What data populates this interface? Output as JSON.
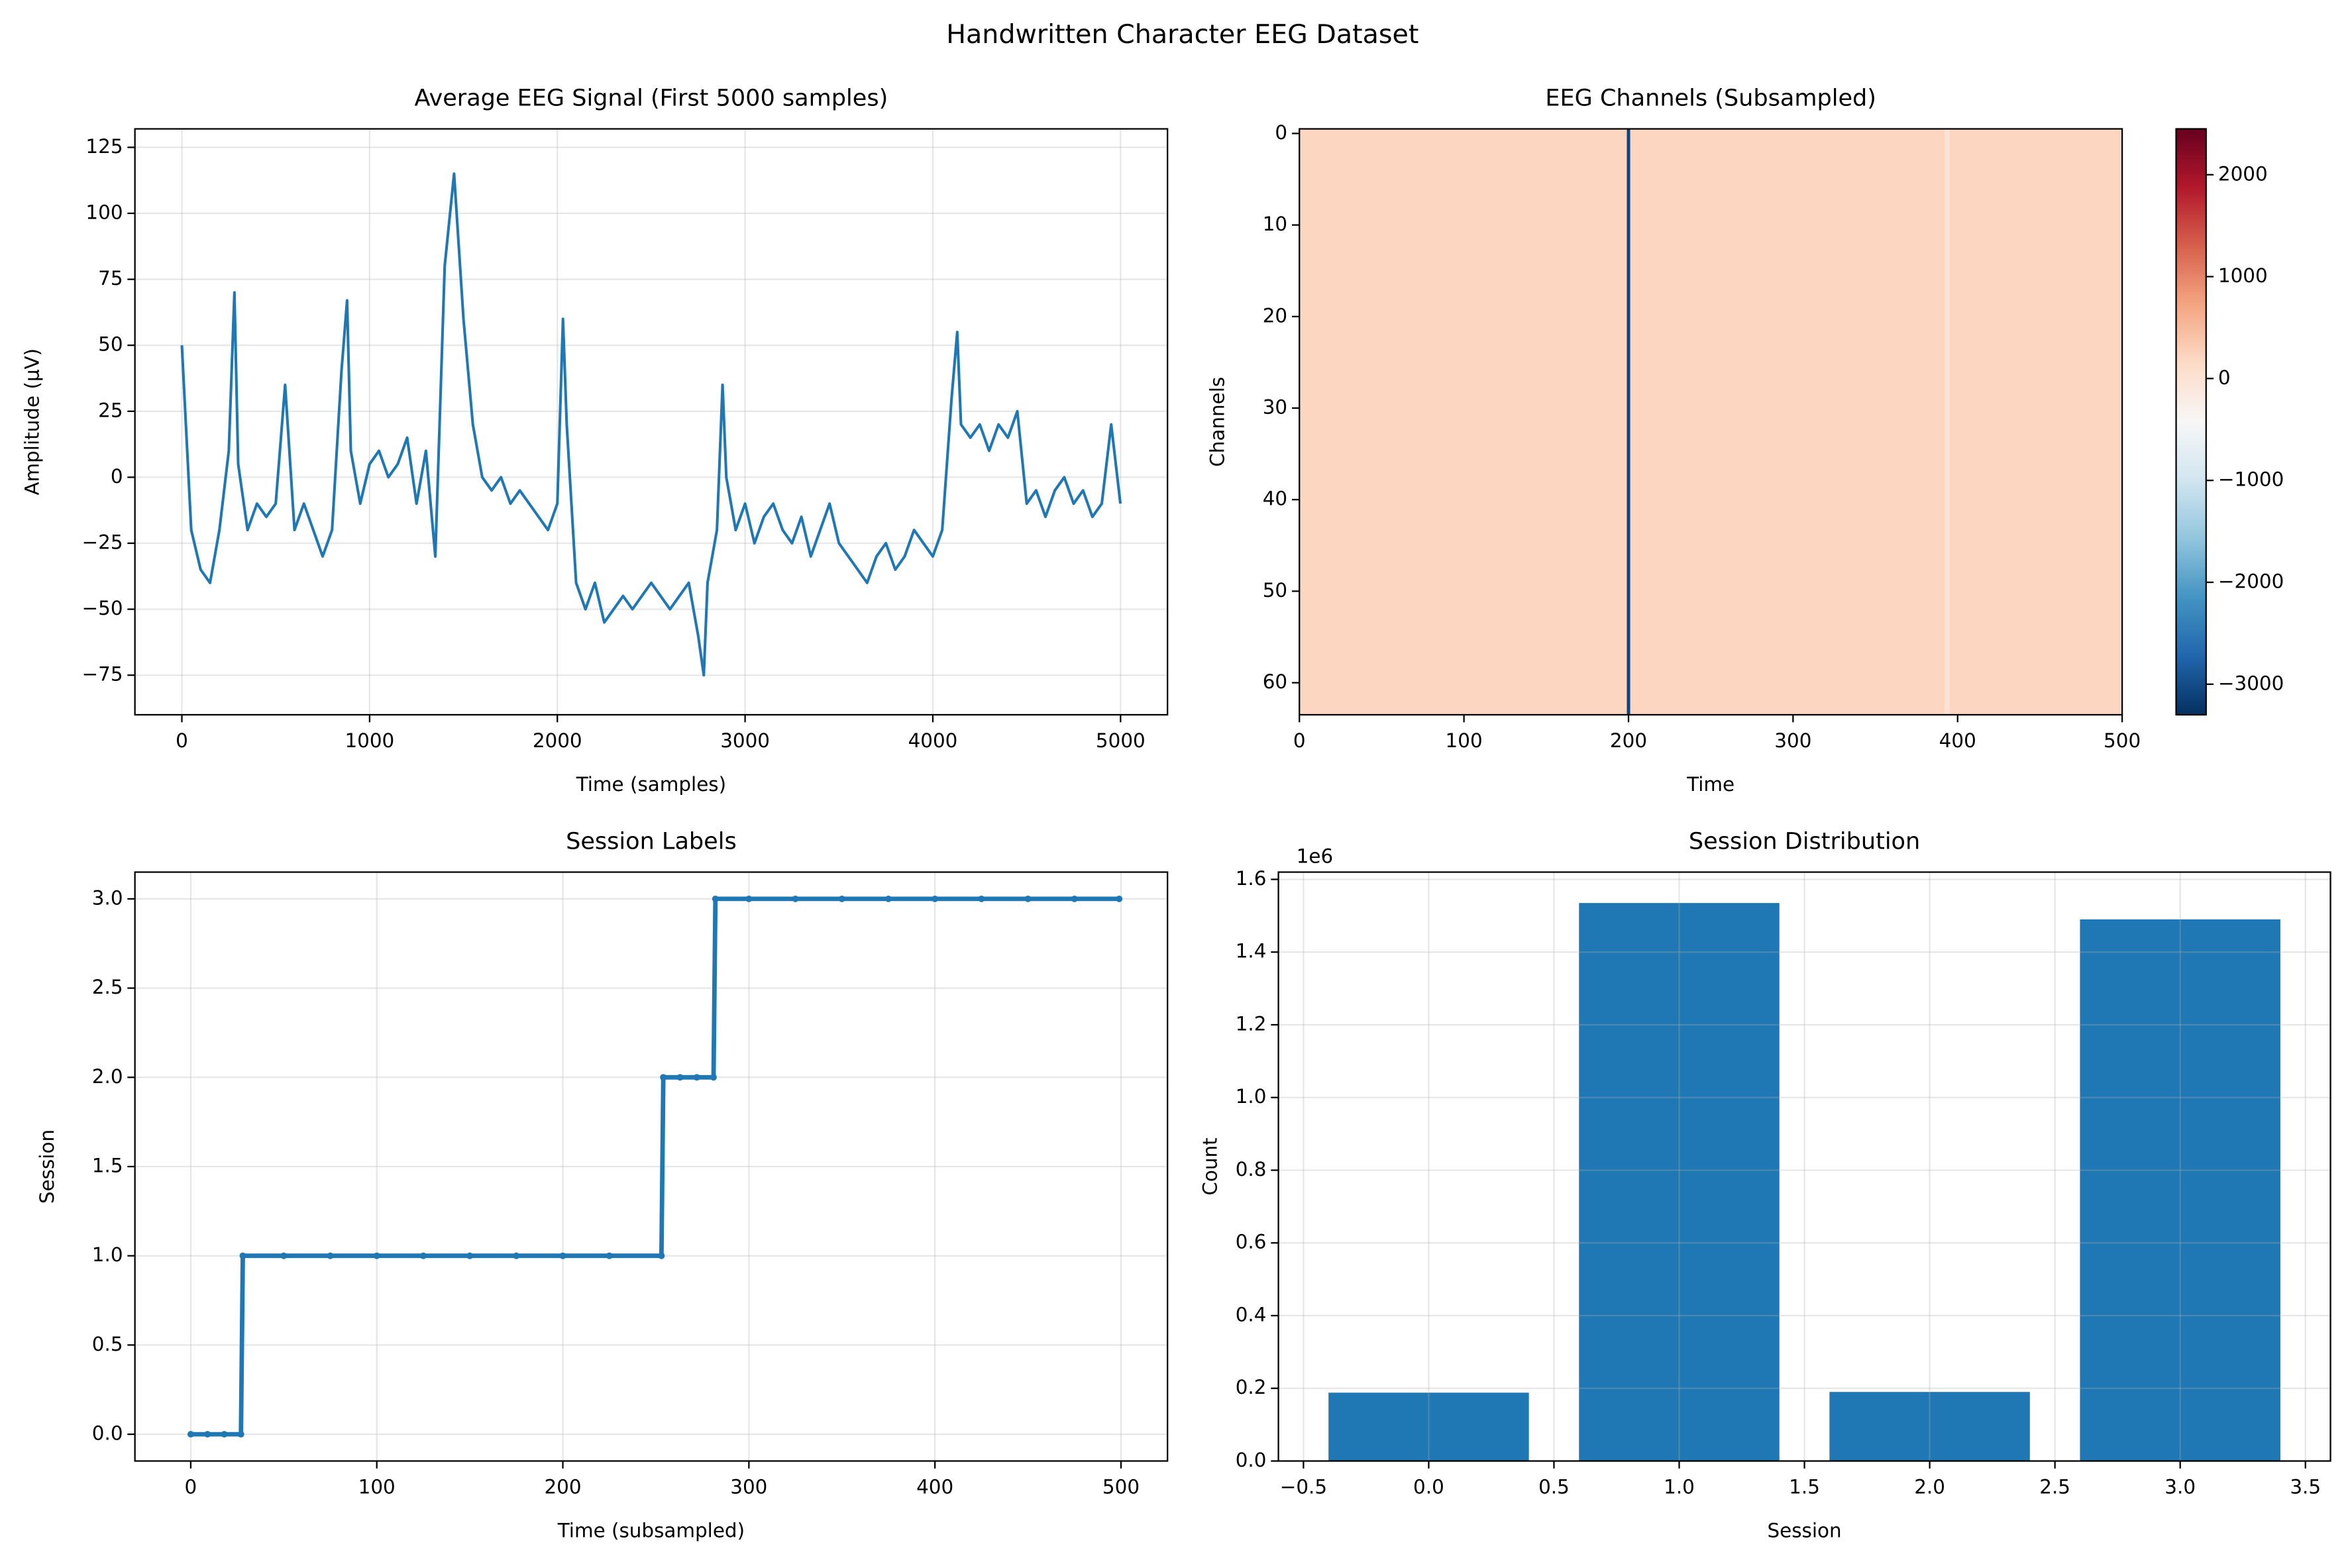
{
  "title": "Handwritten Character EEG Dataset",
  "chart_data": [
    {
      "type": "line",
      "title": "Average EEG Signal (First 5000 samples)",
      "xlabel": "Time (samples)",
      "ylabel": "Amplitude (μV)",
      "color": "#1f77b4",
      "grid": true,
      "x": [
        0,
        50,
        100,
        150,
        200,
        250,
        280,
        300,
        350,
        400,
        450,
        500,
        550,
        600,
        650,
        700,
        750,
        800,
        850,
        880,
        900,
        950,
        1000,
        1050,
        1100,
        1150,
        1200,
        1250,
        1300,
        1350,
        1400,
        1450,
        1500,
        1550,
        1600,
        1650,
        1700,
        1750,
        1800,
        1850,
        1900,
        1950,
        2000,
        2030,
        2050,
        2100,
        2150,
        2200,
        2250,
        2300,
        2350,
        2400,
        2450,
        2500,
        2550,
        2600,
        2650,
        2700,
        2750,
        2780,
        2800,
        2850,
        2880,
        2900,
        2950,
        3000,
        3050,
        3100,
        3150,
        3200,
        3250,
        3300,
        3350,
        3400,
        3450,
        3500,
        3550,
        3600,
        3650,
        3700,
        3750,
        3800,
        3850,
        3900,
        3950,
        4000,
        4050,
        4100,
        4130,
        4150,
        4200,
        4250,
        4300,
        4350,
        4400,
        4450,
        4500,
        4550,
        4600,
        4650,
        4700,
        4750,
        4800,
        4850,
        4900,
        4950,
        4999
      ],
      "values": [
        50,
        -20,
        -35,
        -40,
        -20,
        10,
        70,
        5,
        -20,
        -10,
        -15,
        -10,
        35,
        -20,
        -10,
        -20,
        -30,
        -20,
        40,
        67,
        10,
        -10,
        5,
        10,
        0,
        5,
        15,
        -10,
        10,
        -30,
        80,
        115,
        60,
        20,
        0,
        -5,
        0,
        -10,
        -5,
        -10,
        -15,
        -20,
        -10,
        60,
        20,
        -40,
        -50,
        -40,
        -55,
        -50,
        -45,
        -50,
        -45,
        -40,
        -45,
        -50,
        -45,
        -40,
        -60,
        -75,
        -40,
        -20,
        35,
        0,
        -20,
        -10,
        -25,
        -15,
        -10,
        -20,
        -25,
        -15,
        -30,
        -20,
        -10,
        -25,
        -30,
        -35,
        -40,
        -30,
        -25,
        -35,
        -30,
        -20,
        -25,
        -30,
        -20,
        30,
        55,
        20,
        15,
        20,
        10,
        20,
        15,
        25,
        -10,
        -5,
        -15,
        -5,
        0,
        -10,
        -5,
        -15,
        -10,
        20,
        -10
      ],
      "xlim": [
        -250,
        5250
      ],
      "xticks": [
        0,
        1000,
        2000,
        3000,
        4000,
        5000
      ],
      "ylim": [
        -90,
        132
      ],
      "yticks": [
        {
          "value": -75,
          "label": "−75"
        },
        {
          "value": -50,
          "label": "−50"
        },
        {
          "value": -25,
          "label": "−25"
        },
        0,
        25,
        50,
        75,
        100,
        125
      ]
    },
    {
      "type": "heatmap",
      "title": "EEG Channels (Subsampled)",
      "xlabel": "Time",
      "ylabel": "Channels",
      "grid": false,
      "colormap": [
        "#053061",
        "#2166ac",
        "#4393c3",
        "#92c5de",
        "#d1e5f0",
        "#f7f7f7",
        "#fddbc7",
        "#f4a582",
        "#d6604d",
        "#b2182b",
        "#67001f"
      ],
      "x_edges": [
        0,
        199,
        201,
        392,
        395,
        500
      ],
      "y_edges": [
        -0.5,
        63.5
      ],
      "z": [
        [
          200,
          -3100,
          200,
          0,
          200
        ]
      ],
      "clim": [
        -3300,
        2450
      ],
      "cticks": [
        {
          "value": -3000,
          "label": "−3000"
        },
        {
          "value": -2000,
          "label": "−2000"
        },
        {
          "value": -1000,
          "label": "−1000"
        },
        0,
        1000,
        2000
      ],
      "xlim": [
        0,
        500
      ],
      "xticks": [
        0,
        100,
        200,
        300,
        400,
        500
      ],
      "ylim": [
        63.5,
        -0.5
      ],
      "yticks": [
        0,
        10,
        20,
        30,
        40,
        50,
        60
      ]
    },
    {
      "type": "line",
      "title": "Session Labels",
      "xlabel": "Time (subsampled)",
      "ylabel": "Session",
      "color": "#1f77b4",
      "grid": true,
      "marker": true,
      "x": [
        0,
        9,
        18,
        27,
        28,
        50,
        75,
        100,
        125,
        150,
        175,
        200,
        225,
        253,
        254,
        263,
        272,
        281,
        282,
        300,
        325,
        350,
        375,
        400,
        425,
        450,
        475,
        499
      ],
      "values": [
        0,
        0,
        0,
        0,
        1,
        1,
        1,
        1,
        1,
        1,
        1,
        1,
        1,
        1,
        2,
        2,
        2,
        2,
        3,
        3,
        3,
        3,
        3,
        3,
        3,
        3,
        3,
        3
      ],
      "xlim": [
        -30,
        525
      ],
      "xticks": [
        0,
        100,
        200,
        300,
        400,
        500
      ],
      "ylim": [
        -0.15,
        3.15
      ],
      "yticks": [
        {
          "value": 0,
          "label": "0.0"
        },
        0.5,
        {
          "value": 1,
          "label": "1.0"
        },
        1.5,
        {
          "value": 2,
          "label": "2.0"
        },
        2.5,
        {
          "value": 3,
          "label": "3.0"
        }
      ]
    },
    {
      "type": "bar",
      "title": "Session Distribution",
      "xlabel": "Session",
      "ylabel": "Count",
      "y_offset_label": "1e6",
      "color": "#1f77b4",
      "grid": true,
      "bar_width": 0.8,
      "x": [
        0,
        1,
        2,
        3
      ],
      "values": [
        188000,
        1535000,
        190000,
        1490000
      ],
      "xlim": [
        -0.6,
        3.6
      ],
      "xticks": [
        {
          "value": -0.5,
          "label": "−0.5"
        },
        {
          "value": 0,
          "label": "0.0"
        },
        0.5,
        {
          "value": 1,
          "label": "1.0"
        },
        1.5,
        {
          "value": 2,
          "label": "2.0"
        },
        2.5,
        {
          "value": 3,
          "label": "3.0"
        },
        3.5
      ],
      "ylim": [
        0,
        1620000
      ],
      "yticks": [
        {
          "value": 0,
          "label": "0.0"
        },
        {
          "value": 200000,
          "label": "0.2"
        },
        {
          "value": 400000,
          "label": "0.4"
        },
        {
          "value": 600000,
          "label": "0.6"
        },
        {
          "value": 800000,
          "label": "0.8"
        },
        {
          "value": 1000000,
          "label": "1.0"
        },
        {
          "value": 1200000,
          "label": "1.2"
        },
        {
          "value": 1400000,
          "label": "1.4"
        },
        {
          "value": 1600000,
          "label": "1.6"
        }
      ]
    }
  ]
}
